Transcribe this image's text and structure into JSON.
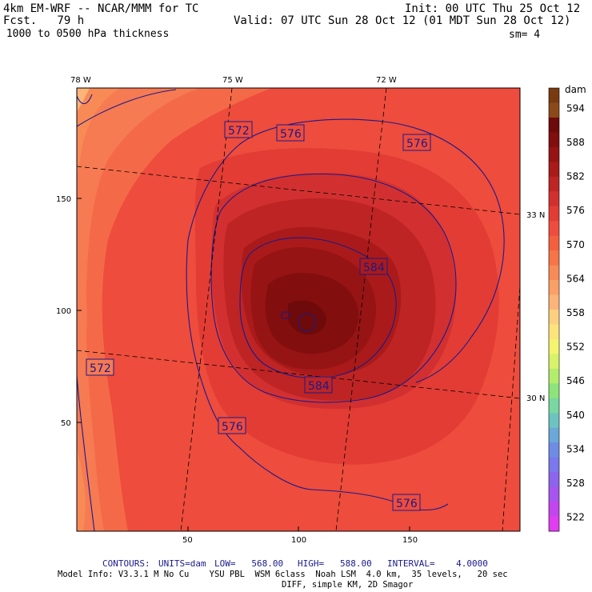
{
  "header": {
    "model": "4km EM-WRF -- NCAR/MMM for TC",
    "forecast": "Fcst.   79 h",
    "field": " 1000 to 0500 hPa thickness",
    "init": "Init: 00 UTC Thu 25 Oct 12",
    "valid": "Valid: 07 UTC Sun 28 Oct 12 (01 MDT Sun 28 Oct 12)",
    "smoothing": "sm= 4"
  },
  "map": {
    "lon_labels": [
      "78 W",
      "75 W",
      "72 W"
    ],
    "lat_labels": [
      "33 N",
      "30 N"
    ],
    "x_ticks": [
      "50",
      "100",
      "150"
    ],
    "y_ticks": [
      "150",
      "100",
      "50"
    ],
    "contour_labels": [
      {
        "id": "c572-top",
        "text": "572"
      },
      {
        "id": "c576-top",
        "text": "576"
      },
      {
        "id": "c576-top-right",
        "text": "576"
      },
      {
        "id": "c584-right",
        "text": "584"
      },
      {
        "id": "c572-left",
        "text": "572"
      },
      {
        "id": "c584-bottom",
        "text": "584"
      },
      {
        "id": "c576-lower-left",
        "text": "576"
      },
      {
        "id": "c576-bottom",
        "text": "576"
      }
    ]
  },
  "colorbar": {
    "unit": "dam",
    "labels": [
      "594",
      "588",
      "582",
      "576",
      "570",
      "564",
      "558",
      "552",
      "546",
      "540",
      "534",
      "528",
      "522"
    ],
    "colors": [
      "#7a3a10",
      "#8c4a1a",
      "#6e0a0a",
      "#820e0e",
      "#961414",
      "#aa1a1a",
      "#be2424",
      "#d23030",
      "#e23c34",
      "#ee4c3c",
      "#f4603e",
      "#f67448",
      "#f88a56",
      "#faa066",
      "#fcb478",
      "#fdd080",
      "#fde47a",
      "#f4f46e",
      "#d8f26a",
      "#b4ec6c",
      "#8ce47a",
      "#78d8a0",
      "#6cc4c0",
      "#6aa8d8",
      "#6e8ce6",
      "#7a78ec",
      "#8c64ee",
      "#a854ee",
      "#c444ee",
      "#e03cf0"
    ]
  },
  "footer": {
    "contours_label": "CONTOURS:",
    "units": "UNITS=dam",
    "low": "LOW=   568.00",
    "high": "HIGH=   588.00",
    "interval": "INTERVAL=    4.0000",
    "model_info": "Model Info: V3.3.1 M No Cu    YSU PBL  WSM 6class  Noah LSM  4.0 km,  35 levels,   20 sec",
    "diff": "DIFF, simple KM, 2D Smagor"
  },
  "colors": {
    "contour": "#1a1a8c",
    "gridline": "#000000"
  }
}
